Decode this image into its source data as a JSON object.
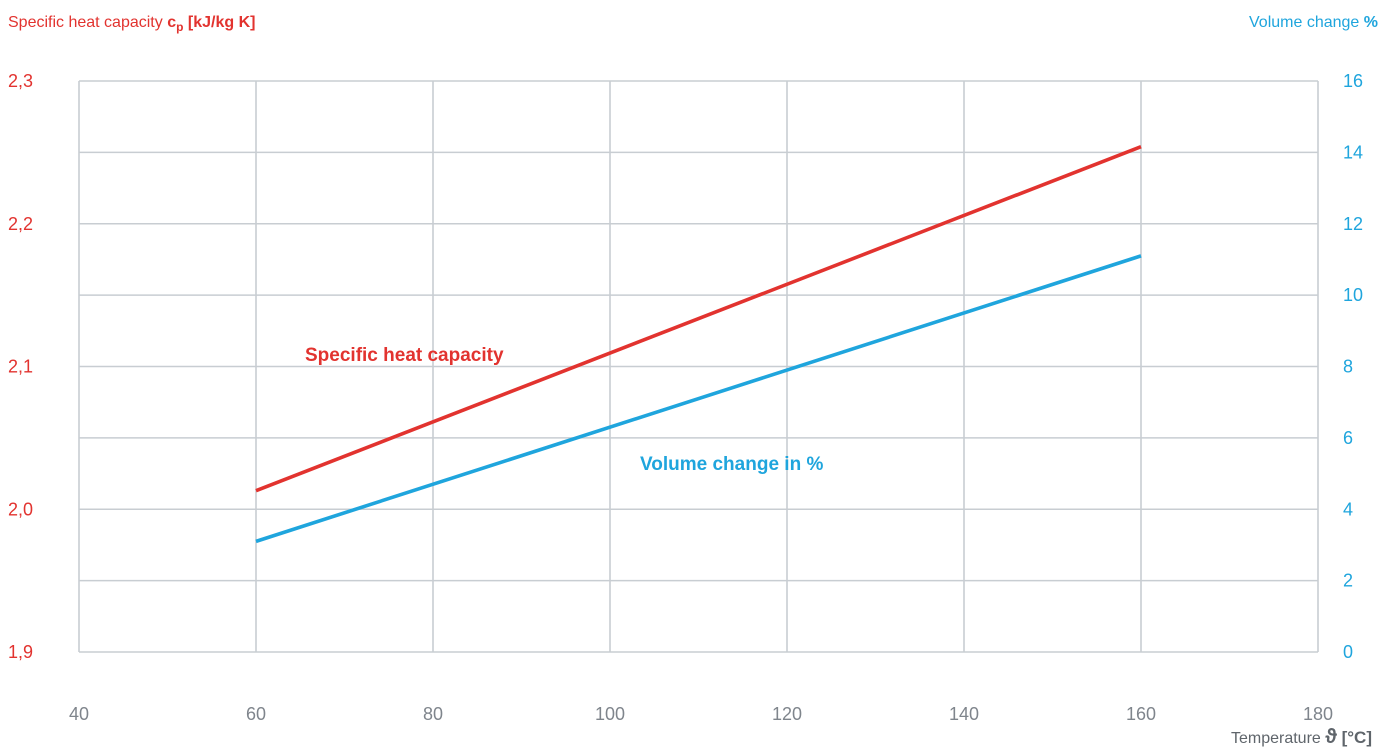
{
  "chart_data": {
    "type": "line",
    "left_axis_title": {
      "plain": "Specific heat capacity ",
      "symbol": "c",
      "subscript": "p",
      "unit": " [kJ/kg K]"
    },
    "right_axis_title": {
      "plain": "Volume change ",
      "unit": "%"
    },
    "x_axis_title": {
      "plain": "Temperature ",
      "symbol": "ϑ",
      "unit": " [°C]"
    },
    "x": {
      "min": 40,
      "max": 180,
      "ticks": [
        40,
        60,
        80,
        100,
        120,
        140,
        160,
        180
      ]
    },
    "y_left": {
      "min": 1.9,
      "max": 2.3,
      "ticks": [
        1.9,
        2.0,
        2.1,
        2.2,
        2.3
      ],
      "tick_labels": [
        "1,9",
        "2,0",
        "2,1",
        "2,2",
        "2,3"
      ]
    },
    "y_right": {
      "min": 0,
      "max": 16,
      "ticks": [
        0,
        2,
        4,
        6,
        8,
        10,
        12,
        14,
        16
      ]
    },
    "grid": true,
    "series": [
      {
        "name": "Specific heat capacity",
        "axis": "left",
        "color": "#e2332f",
        "x": [
          60,
          160
        ],
        "values": [
          2.013,
          2.254
        ]
      },
      {
        "name": "Volume change in %",
        "axis": "right",
        "color": "#1fa5dd",
        "x": [
          60,
          160
        ],
        "values": [
          3.1,
          11.1
        ]
      }
    ]
  }
}
